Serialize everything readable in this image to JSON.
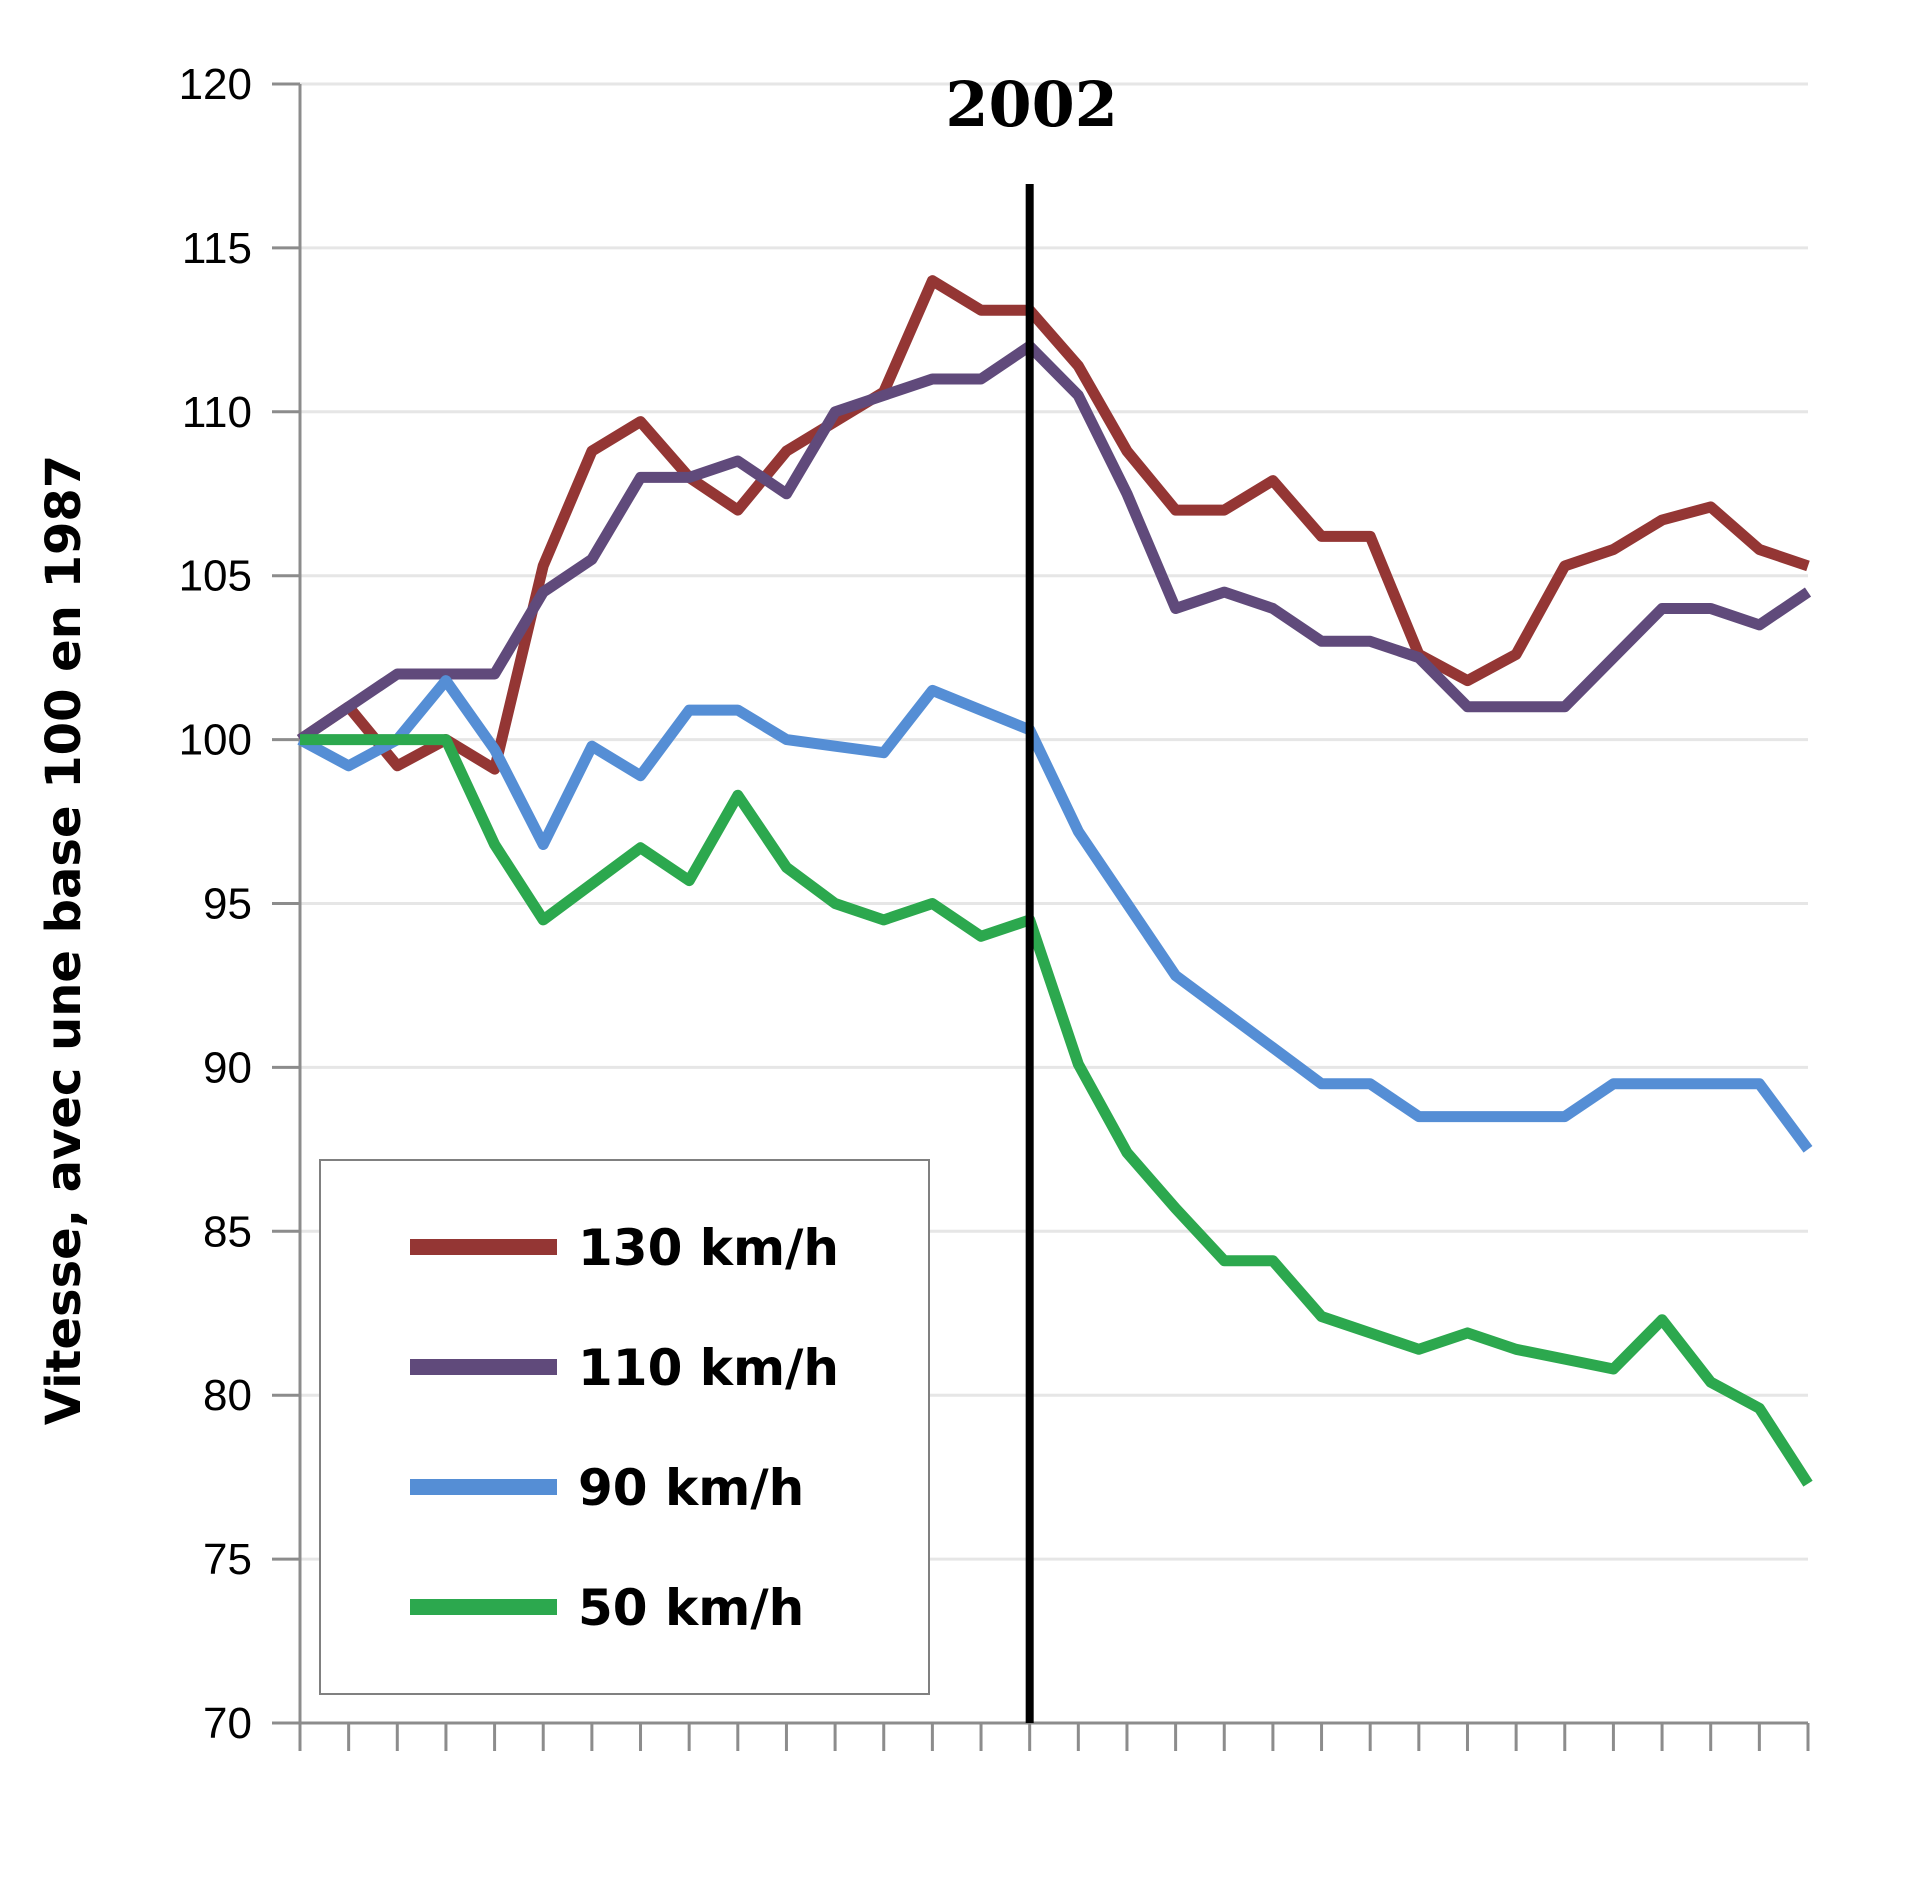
{
  "chart_data": {
    "type": "line",
    "ylabel": "Vitesse, avec une base 100  en 1987",
    "xlabel": "",
    "ylim": [
      70,
      120
    ],
    "yticks": [
      70,
      75,
      80,
      85,
      90,
      95,
      100,
      105,
      110,
      115,
      120
    ],
    "x_count": 32,
    "grid": true,
    "legend_position": "bottom-left",
    "annotation": {
      "label": "2002",
      "x_index": 15
    },
    "series": [
      {
        "name": "130 km/h",
        "color": "#943634",
        "values": [
          100,
          101,
          99.2,
          100,
          99.1,
          105.3,
          108.8,
          109.7,
          108,
          107,
          108.8,
          109.7,
          110.6,
          114,
          113.1,
          113.1,
          111.4,
          108.8,
          107,
          107,
          107.9,
          106.2,
          106.2,
          102.6,
          101.8,
          102.6,
          105.3,
          105.8,
          106.7,
          107.1,
          105.8,
          105.3
        ]
      },
      {
        "name": "110 km/h",
        "color": "#604A7B",
        "values": [
          100,
          101,
          102,
          102,
          102,
          104.5,
          105.5,
          108,
          108,
          108.5,
          107.5,
          110,
          110.5,
          111,
          111,
          112,
          110.5,
          107.5,
          104,
          104.5,
          104,
          103,
          103,
          102.5,
          101,
          101,
          101,
          102.5,
          104,
          104,
          103.5,
          104.5
        ]
      },
      {
        "name": "90 km/h",
        "color": "#558ED5",
        "values": [
          100,
          99.2,
          100,
          101.8,
          99.7,
          96.8,
          99.8,
          98.9,
          100.9,
          100.9,
          100,
          99.8,
          99.6,
          101.5,
          100.9,
          100.3,
          97.2,
          95,
          92.8,
          91.7,
          90.6,
          89.5,
          89.5,
          88.5,
          88.5,
          88.5,
          88.5,
          89.5,
          89.5,
          89.5,
          89.5,
          87.5
        ]
      },
      {
        "name": "50 km/h",
        "color": "#2CA84E",
        "values": [
          100,
          100,
          100,
          100,
          96.8,
          94.5,
          95.6,
          96.7,
          95.7,
          98.3,
          96.1,
          95,
          94.5,
          95,
          94,
          94.5,
          90.1,
          87.4,
          85.7,
          84.1,
          84.1,
          82.4,
          81.9,
          81.4,
          81.9,
          81.4,
          81.1,
          80.8,
          82.3,
          80.4,
          79.6,
          77.3
        ]
      }
    ]
  }
}
